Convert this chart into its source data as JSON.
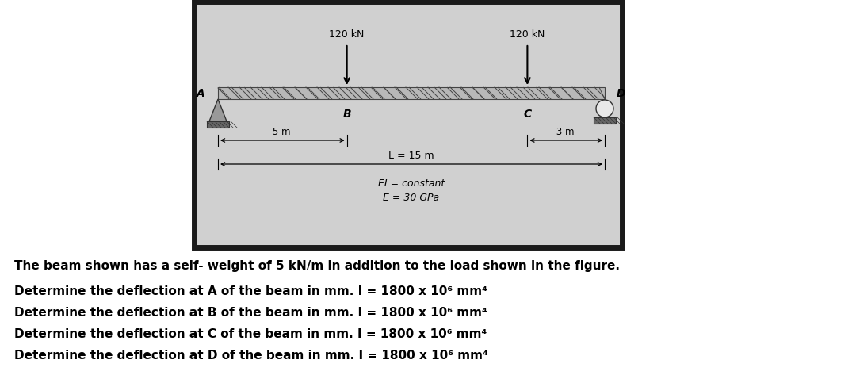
{
  "bg_outer": "#1a1a1a",
  "bg_inner": "#d0d0d0",
  "beam_color": "#aaaaaa",
  "beam_stripe_color": "#555555",
  "load_label1": "120 kN",
  "load_label2": "120 kN",
  "label_A": "A",
  "label_B": "B",
  "label_C": "C",
  "label_D": "D",
  "dim1_label": "−5 m—",
  "dim2_label": "−3 m—",
  "span_label": "L = 15 m",
  "EI_label": "EI = constant",
  "E_label": "E = 30 GPa",
  "text_line0": "The beam shown has a self- weight of 5 kN/m in addition to the load shown in the figure.",
  "text_line1": "Determine the deflection at A of the beam in mm. I = 1800 x 10⁶ mm⁴",
  "text_line2": "Determine the deflection at B of the beam in mm. I = 1800 x 10⁶ mm⁴",
  "text_line3": "Determine the deflection at C of the beam in mm. I = 1800 x 10⁶ mm⁴",
  "text_line4": "Determine the deflection at D of the beam in mm. I = 1800 x 10⁶ mm⁴",
  "figure_width": 10.8,
  "figure_height": 4.73
}
